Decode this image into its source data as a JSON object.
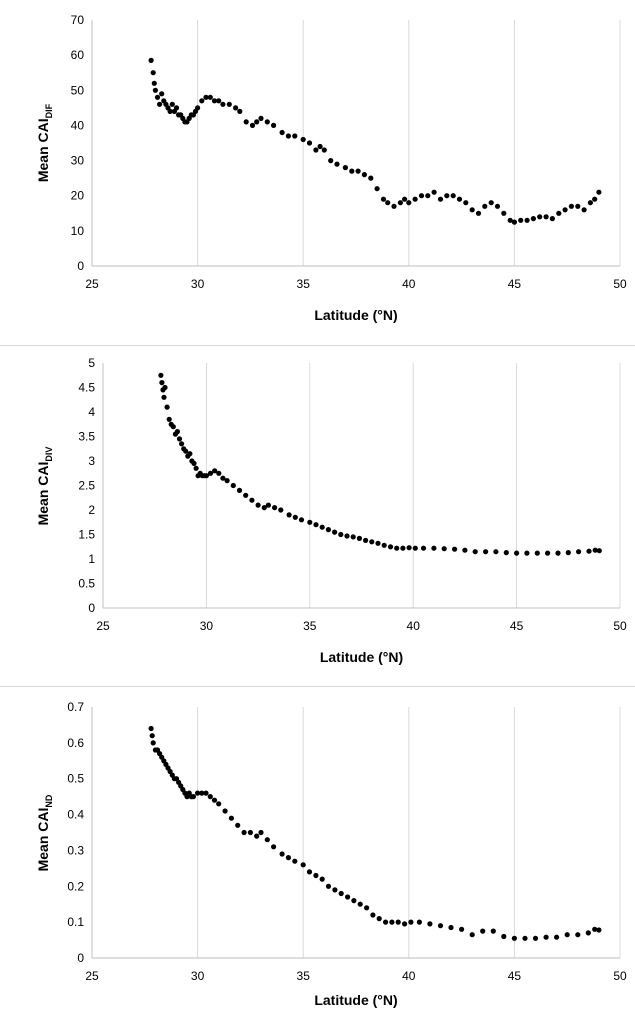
{
  "chart_data": [
    {
      "type": "scatter",
      "title": "",
      "xlabel": "Latitude (°N)",
      "ylabel_main": "Mean CAI",
      "ylabel_sub": "DIF",
      "xlim": [
        25,
        50
      ],
      "ylim": [
        0,
        70
      ],
      "xticks": [
        "25",
        "30",
        "35",
        "40",
        "45",
        "50"
      ],
      "yticks": [
        "0",
        "10",
        "20",
        "30",
        "40",
        "50",
        "60",
        "70"
      ],
      "grid": "vertical",
      "marker_color": "#000000",
      "series": [
        {
          "x": [
            27.8,
            27.9,
            27.95,
            28.0,
            28.1,
            28.2,
            28.3,
            28.4,
            28.5,
            28.6,
            28.7,
            28.8,
            28.9,
            29.0,
            29.1,
            29.2,
            29.3,
            29.4,
            29.5,
            29.6,
            29.7,
            29.8,
            29.9,
            30.0,
            30.2,
            30.4,
            30.6,
            30.8,
            31.0,
            31.2,
            31.5,
            31.8,
            32.0,
            32.3,
            32.6,
            32.8,
            33.0,
            33.3,
            33.6,
            34.0,
            34.3,
            34.6,
            35.0,
            35.3,
            35.6,
            35.8,
            36.0,
            36.3,
            36.6,
            37.0,
            37.3,
            37.6,
            37.9,
            38.2,
            38.5,
            38.8,
            39.0,
            39.3,
            39.6,
            39.8,
            40.0,
            40.3,
            40.6,
            40.9,
            41.2,
            41.5,
            41.8,
            42.1,
            42.4,
            42.7,
            43.0,
            43.3,
            43.6,
            43.9,
            44.2,
            44.5,
            44.8,
            45.0,
            45.3,
            45.6,
            45.9,
            46.2,
            46.5,
            46.8,
            47.1,
            47.4,
            47.7,
            48.0,
            48.3,
            48.6,
            48.8,
            49.0
          ],
          "y": [
            58.5,
            55,
            52,
            50,
            48,
            46,
            49,
            47,
            46,
            45,
            44,
            46,
            44,
            45,
            43,
            43,
            42,
            41,
            41,
            42,
            43,
            43,
            44,
            45,
            47,
            48,
            48,
            47,
            47,
            46,
            46,
            45,
            44,
            41,
            40,
            41,
            42,
            41,
            40,
            38,
            37,
            37,
            36,
            35,
            33,
            34,
            33,
            30,
            29,
            28,
            27,
            27,
            26,
            25,
            22,
            19,
            18,
            17,
            18,
            19,
            18,
            19,
            20,
            20,
            21,
            19,
            20,
            20,
            19,
            18,
            16,
            15,
            17,
            18,
            17,
            15,
            13,
            12.5,
            13,
            13,
            13.5,
            14,
            14,
            13.5,
            15,
            16,
            17,
            17,
            16,
            18,
            19,
            21
          ]
        }
      ]
    },
    {
      "type": "scatter",
      "title": "",
      "xlabel": "Latitude (°N)",
      "ylabel_main": "Mean CAI",
      "ylabel_sub": "DIV",
      "xlim": [
        25,
        50
      ],
      "ylim": [
        0,
        5
      ],
      "xticks": [
        "25",
        "30",
        "35",
        "40",
        "45",
        "50"
      ],
      "yticks": [
        "0",
        "0.5",
        "1",
        "1.5",
        "2",
        "2.5",
        "3",
        "3.5",
        "4",
        "4.5",
        "5"
      ],
      "grid": "vertical",
      "marker_color": "#000000",
      "series": [
        {
          "x": [
            27.8,
            27.85,
            27.9,
            27.95,
            28.0,
            28.1,
            28.2,
            28.3,
            28.4,
            28.5,
            28.6,
            28.7,
            28.8,
            28.9,
            29.0,
            29.1,
            29.2,
            29.3,
            29.4,
            29.5,
            29.6,
            29.7,
            29.8,
            29.9,
            30.0,
            30.2,
            30.4,
            30.6,
            30.8,
            31.0,
            31.3,
            31.6,
            31.9,
            32.2,
            32.5,
            32.8,
            33.0,
            33.3,
            33.6,
            34.0,
            34.3,
            34.6,
            35.0,
            35.3,
            35.6,
            35.9,
            36.2,
            36.5,
            36.8,
            37.1,
            37.4,
            37.7,
            38.0,
            38.3,
            38.6,
            38.9,
            39.2,
            39.5,
            39.8,
            40.1,
            40.5,
            41.0,
            41.5,
            42.0,
            42.5,
            43.0,
            43.5,
            44.0,
            44.5,
            45.0,
            45.5,
            46.0,
            46.5,
            47.0,
            47.5,
            48.0,
            48.5,
            48.8,
            49.0
          ],
          "y": [
            4.75,
            4.6,
            4.45,
            4.3,
            4.5,
            4.1,
            3.85,
            3.75,
            3.7,
            3.55,
            3.6,
            3.45,
            3.35,
            3.25,
            3.2,
            3.1,
            3.15,
            3.0,
            2.95,
            2.85,
            2.7,
            2.75,
            2.7,
            2.7,
            2.7,
            2.75,
            2.8,
            2.75,
            2.65,
            2.6,
            2.5,
            2.4,
            2.3,
            2.2,
            2.1,
            2.05,
            2.1,
            2.05,
            2.0,
            1.9,
            1.85,
            1.8,
            1.75,
            1.7,
            1.65,
            1.6,
            1.55,
            1.5,
            1.47,
            1.45,
            1.42,
            1.38,
            1.35,
            1.32,
            1.28,
            1.25,
            1.22,
            1.22,
            1.23,
            1.22,
            1.22,
            1.22,
            1.21,
            1.2,
            1.18,
            1.15,
            1.15,
            1.15,
            1.13,
            1.12,
            1.12,
            1.12,
            1.12,
            1.12,
            1.13,
            1.15,
            1.16,
            1.18,
            1.17
          ]
        }
      ]
    },
    {
      "type": "scatter",
      "title": "",
      "xlabel": "Latitude (°N)",
      "ylabel_main": "Mean CAI",
      "ylabel_sub": "ND",
      "xlim": [
        25,
        50
      ],
      "ylim": [
        0,
        0.7
      ],
      "xticks": [
        "25",
        "30",
        "35",
        "40",
        "45",
        "50"
      ],
      "yticks": [
        "0",
        "0.1",
        "0.2",
        "0.3",
        "0.4",
        "0.5",
        "0.6",
        "0.7"
      ],
      "grid": "vertical",
      "marker_color": "#000000",
      "series": [
        {
          "x": [
            27.8,
            27.85,
            27.9,
            28.0,
            28.1,
            28.2,
            28.3,
            28.4,
            28.5,
            28.6,
            28.7,
            28.8,
            28.9,
            29.0,
            29.1,
            29.2,
            29.3,
            29.4,
            29.5,
            29.6,
            29.7,
            29.8,
            30.0,
            30.2,
            30.4,
            30.6,
            30.8,
            31.0,
            31.3,
            31.6,
            31.9,
            32.2,
            32.5,
            32.8,
            33.0,
            33.3,
            33.6,
            34.0,
            34.3,
            34.6,
            35.0,
            35.3,
            35.6,
            35.9,
            36.2,
            36.5,
            36.8,
            37.1,
            37.4,
            37.7,
            38.0,
            38.3,
            38.6,
            38.9,
            39.2,
            39.5,
            39.8,
            40.1,
            40.5,
            41.0,
            41.5,
            42.0,
            42.5,
            43.0,
            43.5,
            44.0,
            44.5,
            45.0,
            45.5,
            46.0,
            46.5,
            47.0,
            47.5,
            48.0,
            48.5,
            48.8,
            49.0
          ],
          "y": [
            0.64,
            0.62,
            0.6,
            0.58,
            0.58,
            0.57,
            0.56,
            0.55,
            0.54,
            0.53,
            0.52,
            0.51,
            0.5,
            0.5,
            0.49,
            0.48,
            0.47,
            0.46,
            0.45,
            0.46,
            0.45,
            0.45,
            0.46,
            0.46,
            0.46,
            0.45,
            0.44,
            0.43,
            0.41,
            0.39,
            0.37,
            0.35,
            0.35,
            0.34,
            0.35,
            0.33,
            0.31,
            0.29,
            0.28,
            0.27,
            0.26,
            0.24,
            0.23,
            0.22,
            0.2,
            0.19,
            0.18,
            0.17,
            0.16,
            0.15,
            0.14,
            0.12,
            0.11,
            0.1,
            0.1,
            0.1,
            0.095,
            0.1,
            0.1,
            0.095,
            0.09,
            0.085,
            0.08,
            0.065,
            0.075,
            0.075,
            0.06,
            0.055,
            0.055,
            0.055,
            0.058,
            0.058,
            0.065,
            0.065,
            0.07,
            0.08,
            0.078
          ]
        }
      ]
    }
  ]
}
